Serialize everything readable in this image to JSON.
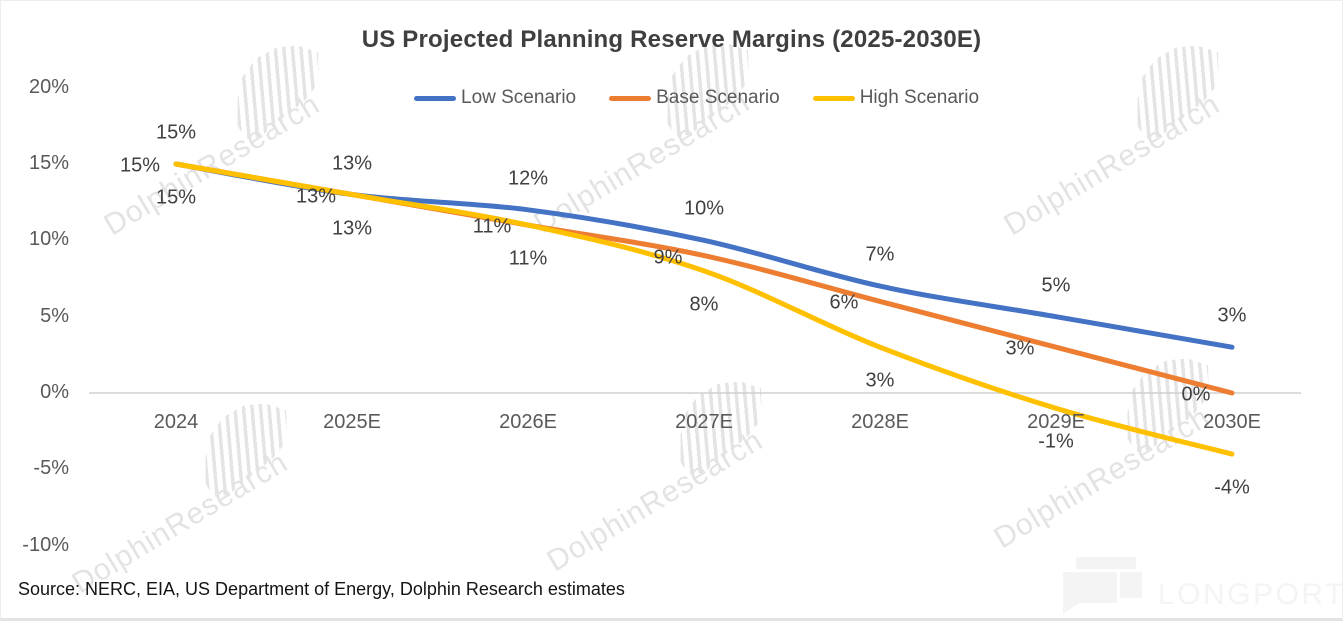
{
  "chart_data": {
    "type": "line",
    "title": "US Projected Planning Reserve Margins (2025-2030E)",
    "categories": [
      "2024",
      "2025E",
      "2026E",
      "2027E",
      "2028E",
      "2029E",
      "2030E"
    ],
    "series": [
      {
        "name": "Low Scenario",
        "color": "#4472C4",
        "values": [
          15,
          13,
          12,
          10,
          7,
          5,
          3
        ],
        "labels": [
          "15%",
          "13%",
          "12%",
          "10%",
          "7%",
          "5%",
          "3%"
        ]
      },
      {
        "name": "Base Scenario",
        "color": "#ED7D31",
        "values": [
          15,
          13,
          11,
          9,
          6,
          3,
          0
        ],
        "labels": [
          "15%",
          "13%",
          "11%",
          "9%",
          "6%",
          "3%",
          "0%"
        ]
      },
      {
        "name": "High Scenario",
        "color": "#FFC000",
        "values": [
          15,
          13,
          11,
          8,
          3,
          -1,
          -4
        ],
        "labels": [
          "15%",
          "13%",
          "11%",
          "8%",
          "3%",
          "-1%",
          "-4%"
        ]
      }
    ],
    "y_axis": {
      "tick_values": [
        20,
        15,
        10,
        5,
        0,
        -5,
        -10
      ],
      "tick_labels": [
        "20%",
        "15%",
        "10%",
        "5%",
        "0%",
        "-5%",
        "-10%"
      ],
      "range": [
        -10,
        20
      ]
    },
    "grid": "zero-line-only",
    "legend_position": "top",
    "smooth_lines": true
  },
  "source_note": "Source: NERC, EIA, US Department of Energy, Dolphin Research estimates",
  "watermark": {
    "text": "DolphinResearch"
  },
  "logo": {
    "text": "LONGPORT"
  },
  "colors": {
    "title_text": "#3f3f3f",
    "axis_text": "#595959",
    "data_label_text": "#404040",
    "zero_line": "#d0d0d0",
    "watermark": "#e3e3e3",
    "logo": "#f4f4f4"
  }
}
